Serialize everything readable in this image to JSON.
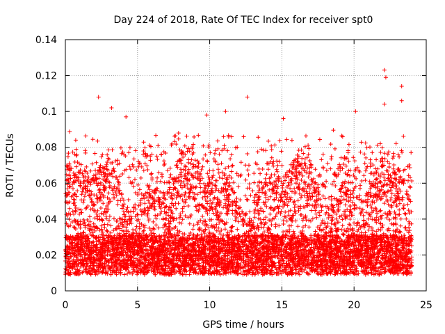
{
  "chart_data": {
    "type": "scatter",
    "title": "Day 224 of 2018, Rate Of TEC Index for receiver spt0",
    "xlabel": "GPS time / hours",
    "ylabel": "ROTI / TECUs",
    "xlim": [
      0,
      25
    ],
    "ylim": [
      0,
      0.14
    ],
    "x_ticks": [
      0,
      5,
      10,
      15,
      20,
      25
    ],
    "x_tick_labels": [
      "0",
      "5",
      "10",
      "15",
      "20",
      "25"
    ],
    "y_ticks": [
      0,
      0.02,
      0.04,
      0.06,
      0.08,
      0.1,
      0.12,
      0.14
    ],
    "y_tick_labels": [
      "0",
      "0.02",
      "0.04",
      "0.06",
      "0.08",
      "0.1",
      "0.12",
      "0.14"
    ],
    "grid": true,
    "marker": "+",
    "series": [
      {
        "name": "ROTI",
        "color": "#ff0000",
        "time_range_hours": [
          0,
          24
        ],
        "typical_range": [
          0.005,
          0.07
        ],
        "notable_points": [
          {
            "x": 2.3,
            "y": 0.108
          },
          {
            "x": 3.2,
            "y": 0.102
          },
          {
            "x": 4.2,
            "y": 0.097
          },
          {
            "x": 9.8,
            "y": 0.098
          },
          {
            "x": 11.1,
            "y": 0.1
          },
          {
            "x": 12.6,
            "y": 0.108
          },
          {
            "x": 15.1,
            "y": 0.096
          },
          {
            "x": 20.1,
            "y": 0.1
          },
          {
            "x": 22.1,
            "y": 0.123
          },
          {
            "x": 22.2,
            "y": 0.119
          },
          {
            "x": 22.1,
            "y": 0.104
          },
          {
            "x": 23.3,
            "y": 0.114
          },
          {
            "x": 23.3,
            "y": 0.106
          }
        ]
      }
    ]
  }
}
